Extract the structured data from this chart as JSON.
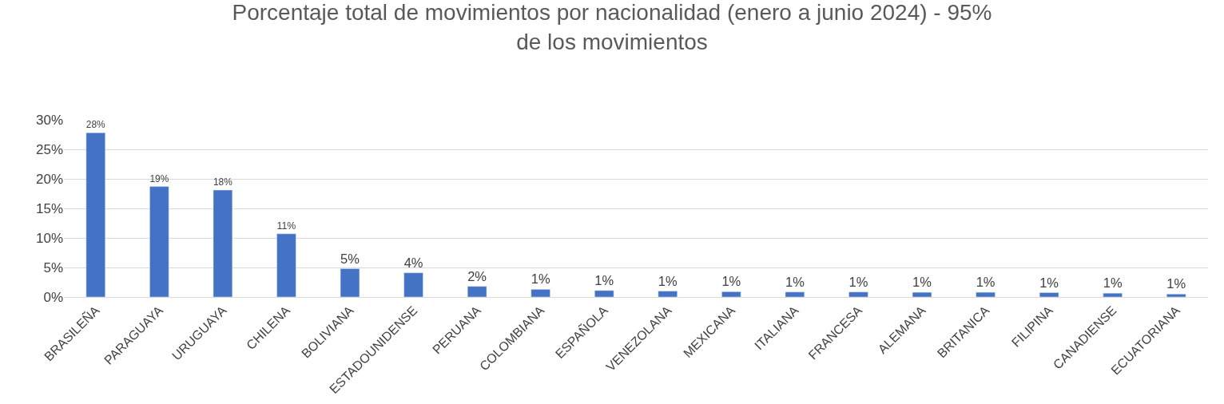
{
  "chart_data": {
    "type": "bar",
    "title": "Porcentaje total de movimientos por nacionalidad (enero a junio 2024) - 95%\nde los movimientos",
    "categories": [
      "BRASILEÑA",
      "PARAGUAYA",
      "URUGUAYA",
      "CHILENA",
      "BOLIVIANA",
      "ESTADOUNIDENSE",
      "PERUANA",
      "COLOMBIANA",
      "ESPAÑOLA",
      "VENEZOLANA",
      "MEXICANA",
      "ITALIANA",
      "FRANCESA",
      "ALEMANA",
      "BRITANICA",
      "FILIPINA",
      "CANADIENSE",
      "ECUATORIANA"
    ],
    "values": [
      27.8,
      18.7,
      18.1,
      10.7,
      4.8,
      4.1,
      1.8,
      1.3,
      1.1,
      1.0,
      0.9,
      0.85,
      0.85,
      0.8,
      0.8,
      0.75,
      0.65,
      0.5
    ],
    "value_labels": [
      "28%",
      "19%",
      "18%",
      "11%",
      "5%",
      "4%",
      "2%",
      "1%",
      "1%",
      "1%",
      "1%",
      "1%",
      "1%",
      "1%",
      "1%",
      "1%",
      "1%",
      "1%"
    ],
    "color": "#4472c4",
    "ylim": [
      0,
      30
    ],
    "yticks": [
      {
        "value": 0,
        "label": "0%"
      },
      {
        "value": 5,
        "label": "5%"
      },
      {
        "value": 10,
        "label": "10%"
      },
      {
        "value": 15,
        "label": "15%"
      },
      {
        "value": 20,
        "label": "20%"
      },
      {
        "value": 25,
        "label": "25%"
      },
      {
        "value": 30,
        "label": "30%"
      }
    ],
    "grid": "y",
    "legend": false
  }
}
